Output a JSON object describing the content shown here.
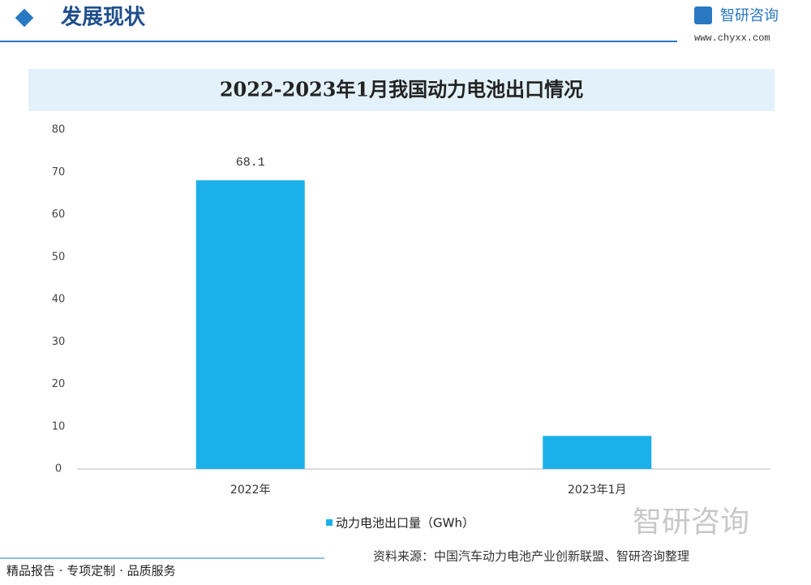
{
  "header": {
    "title": "发展现状",
    "logo": "智研咨询",
    "url": "www.chyxx.com"
  },
  "chart_data": {
    "type": "bar",
    "title": "2022-2023年1月我国动力电池出口情况",
    "categories": [
      "2022年",
      "2023年1月"
    ],
    "series": [
      {
        "name": "动力电池出口量（GWh）",
        "color": "#1cb0eb",
        "values": [
          68.1,
          7.8
        ],
        "value_labels": [
          "68.1",
          null
        ]
      }
    ],
    "ylim": [
      0,
      80
    ],
    "yticks": [
      0,
      10,
      20,
      30,
      40,
      50,
      60,
      70,
      80
    ],
    "grid": false,
    "source": "资料来源：中国汽车动力电池产业创新联盟、智研咨询整理"
  },
  "footer": {
    "slogan": "精品报告 · 专项定制 · 品质服务",
    "logo": "智研咨询"
  }
}
